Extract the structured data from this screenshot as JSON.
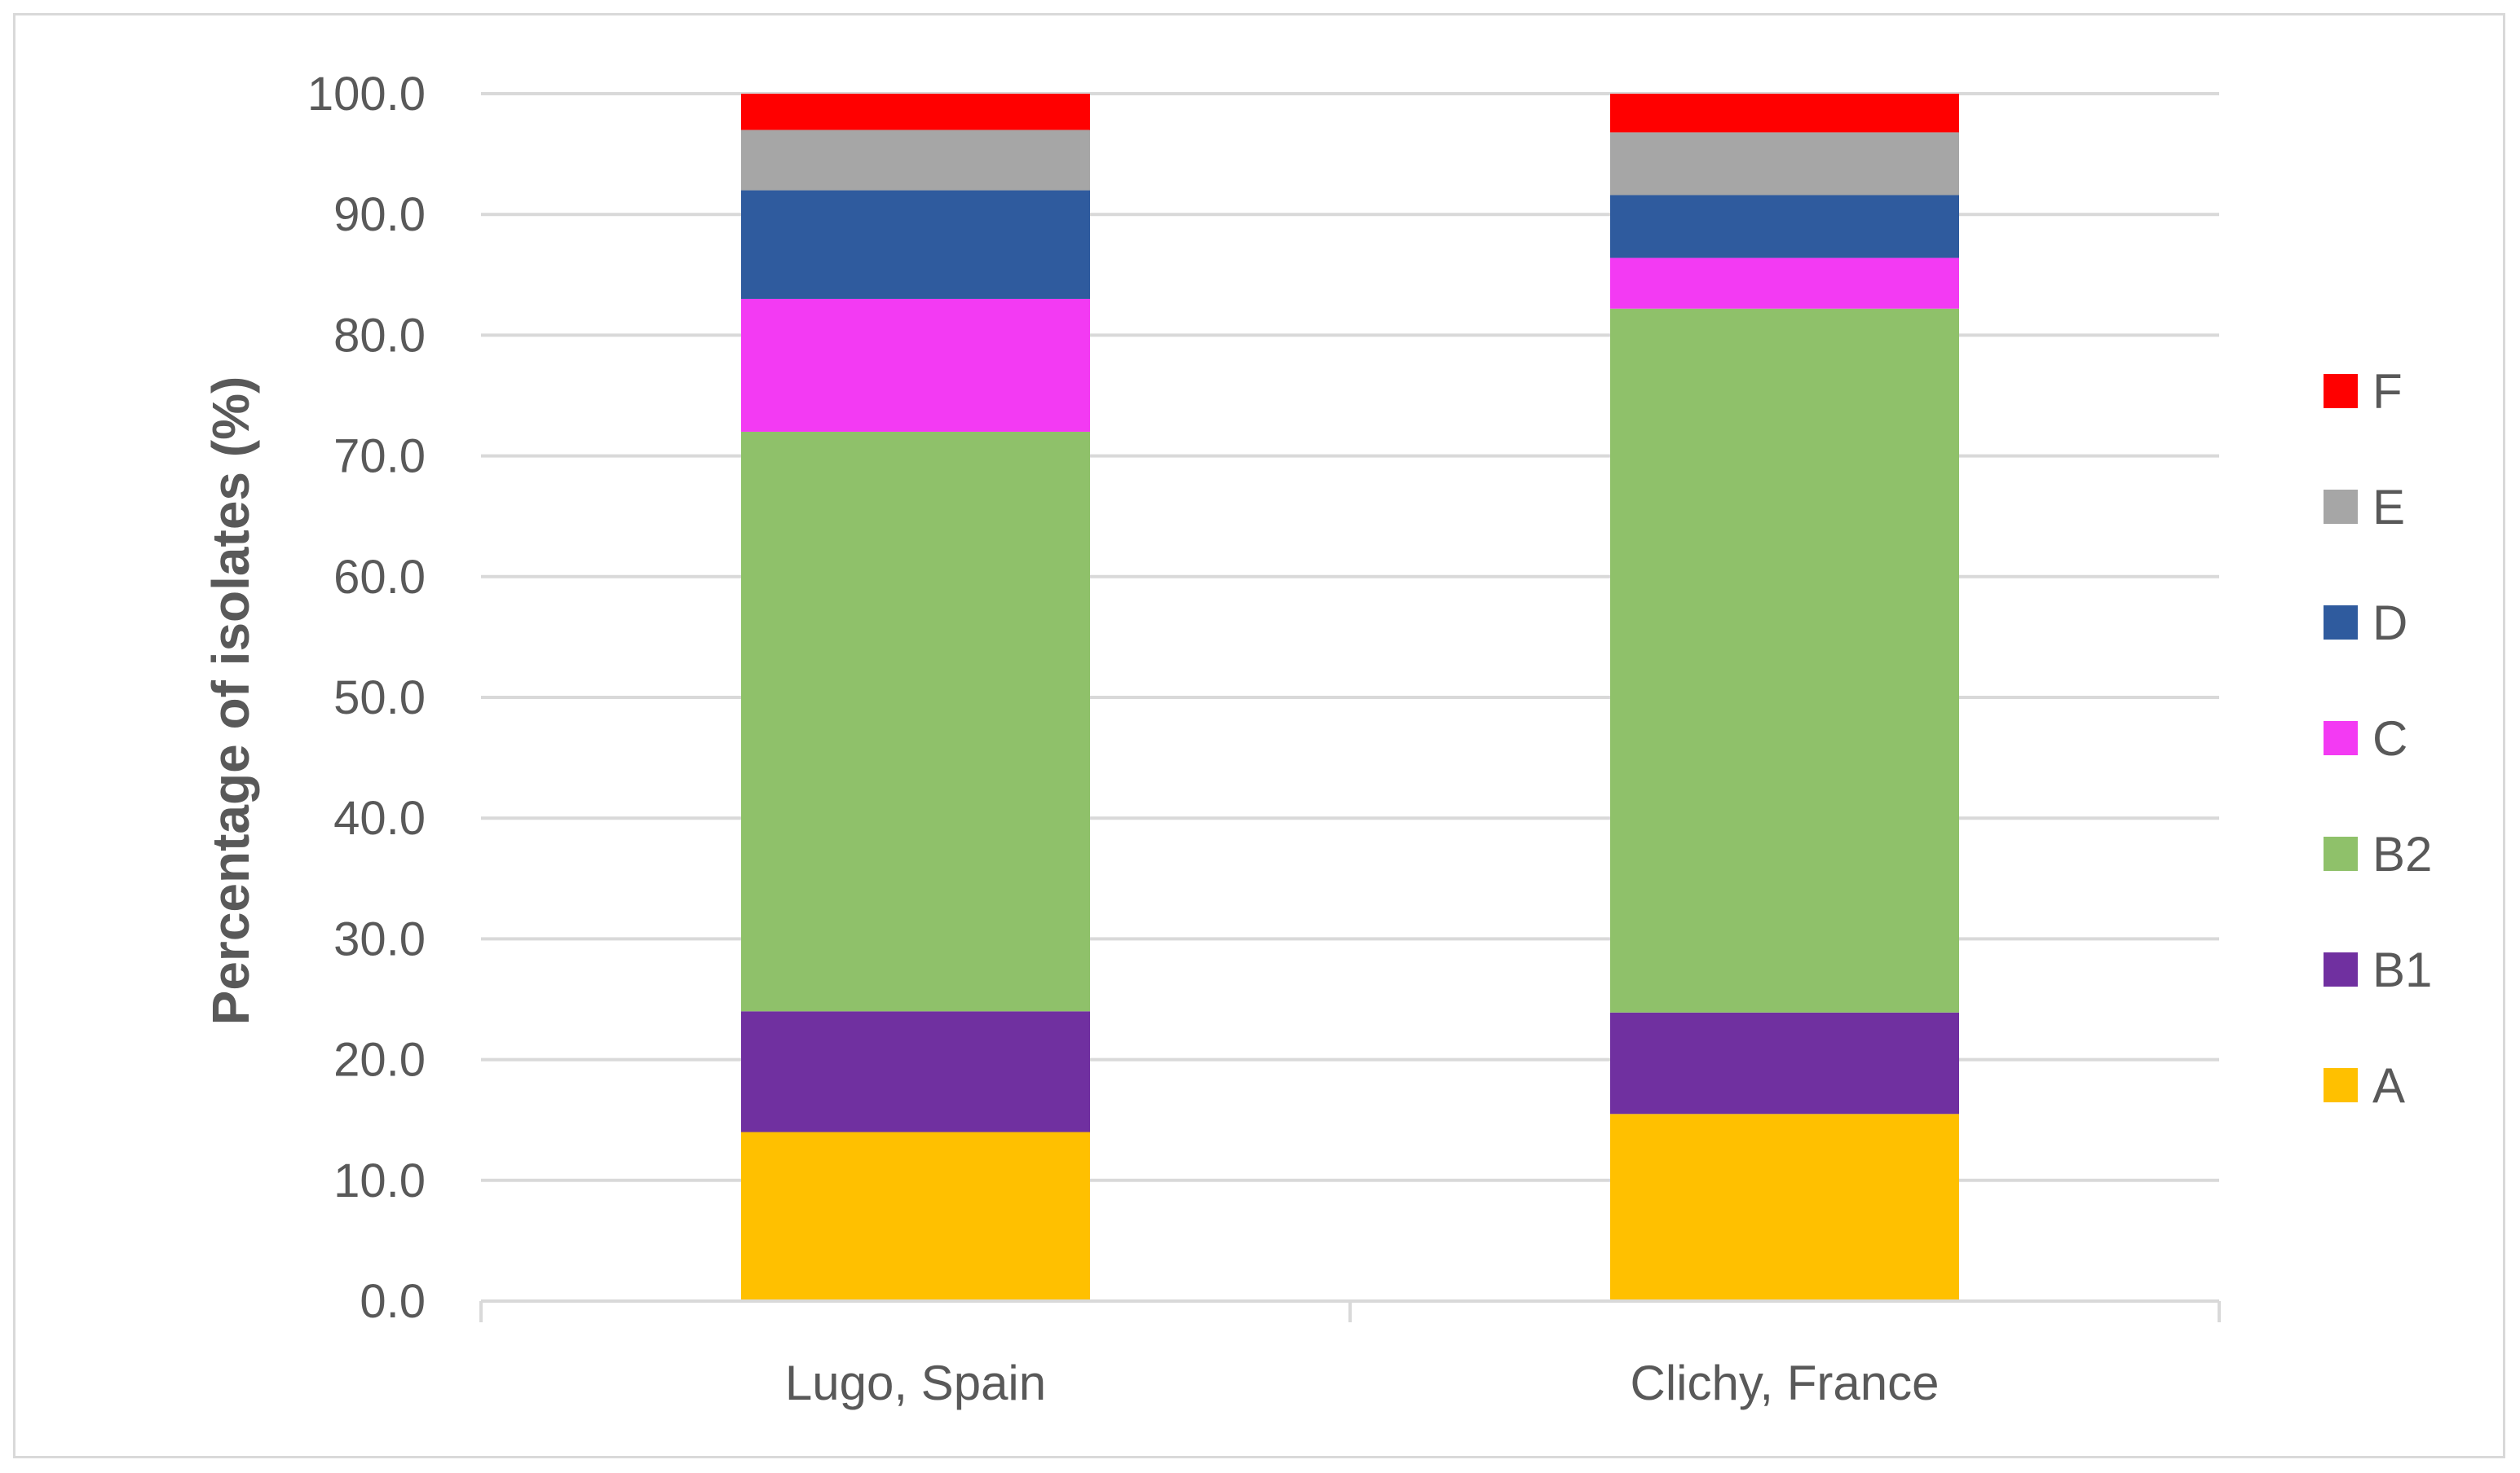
{
  "chart_data": {
    "type": "bar",
    "stacked": true,
    "ylabel": "Percentage of isolates (%)",
    "xlabel": "",
    "ylim": [
      0,
      100
    ],
    "yticks": [
      0,
      10,
      20,
      30,
      40,
      50,
      60,
      70,
      80,
      90,
      100
    ],
    "ytick_labels": [
      "0.0",
      "10.0",
      "20.0",
      "30.0",
      "40.0",
      "50.0",
      "60.0",
      "70.0",
      "80.0",
      "90.0",
      "100.0"
    ],
    "grid": true,
    "legend_position": "right",
    "categories": [
      "Lugo, Spain",
      "Clichy, France"
    ],
    "series": [
      {
        "name": "A",
        "color": "#ffc000",
        "values": [
          14.0,
          15.5
        ]
      },
      {
        "name": "B1",
        "color": "#7030a0",
        "values": [
          10.0,
          8.4
        ]
      },
      {
        "name": "B2",
        "color": "#8fc16a",
        "values": [
          48.0,
          58.3
        ]
      },
      {
        "name": "C",
        "color": "#f33af3",
        "values": [
          11.0,
          4.2
        ]
      },
      {
        "name": "D",
        "color": "#2f5b9e",
        "values": [
          9.0,
          5.2
        ]
      },
      {
        "name": "E",
        "color": "#a6a6a6",
        "values": [
          5.0,
          5.2
        ]
      },
      {
        "name": "F",
        "color": "#ff0000",
        "values": [
          3.0,
          3.2
        ]
      }
    ]
  },
  "colors": {
    "gridline": "#d9d9d9",
    "axis": "#d9d9d9",
    "text": "#595959"
  }
}
